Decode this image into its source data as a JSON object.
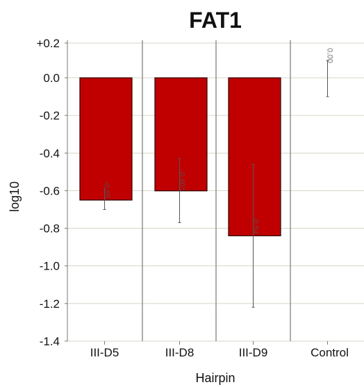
{
  "chart_data": {
    "type": "bar",
    "title": "FAT1",
    "xlabel": "Hairpin",
    "ylabel": "log10",
    "categories": [
      "III-D5",
      "III-D8",
      "III-D9",
      "Control"
    ],
    "values": [
      -0.65,
      -0.601,
      -0.84,
      0.0
    ],
    "value_labels": [
      "-0.65",
      "-0.601",
      "-0.84",
      "0.00"
    ],
    "error_low": [
      -0.7,
      -0.77,
      -1.22,
      -0.1
    ],
    "error_high": [
      -0.59,
      -0.43,
      -0.46,
      0.1
    ],
    "ylim": [
      -1.4,
      0.2
    ],
    "yticks": [
      0.2,
      0.0,
      -0.2,
      -0.4,
      -0.6,
      -0.8,
      -1.0,
      -1.2,
      -1.4
    ],
    "ytick_labels": [
      "+0.2",
      "0.0",
      "-0.2",
      "-0.4",
      "-0.6",
      "-0.8",
      "-1.0",
      "-1.2",
      "-1.4"
    ],
    "grid": true,
    "bar_color": "#c00000",
    "bar_stroke": "#2a0000"
  }
}
